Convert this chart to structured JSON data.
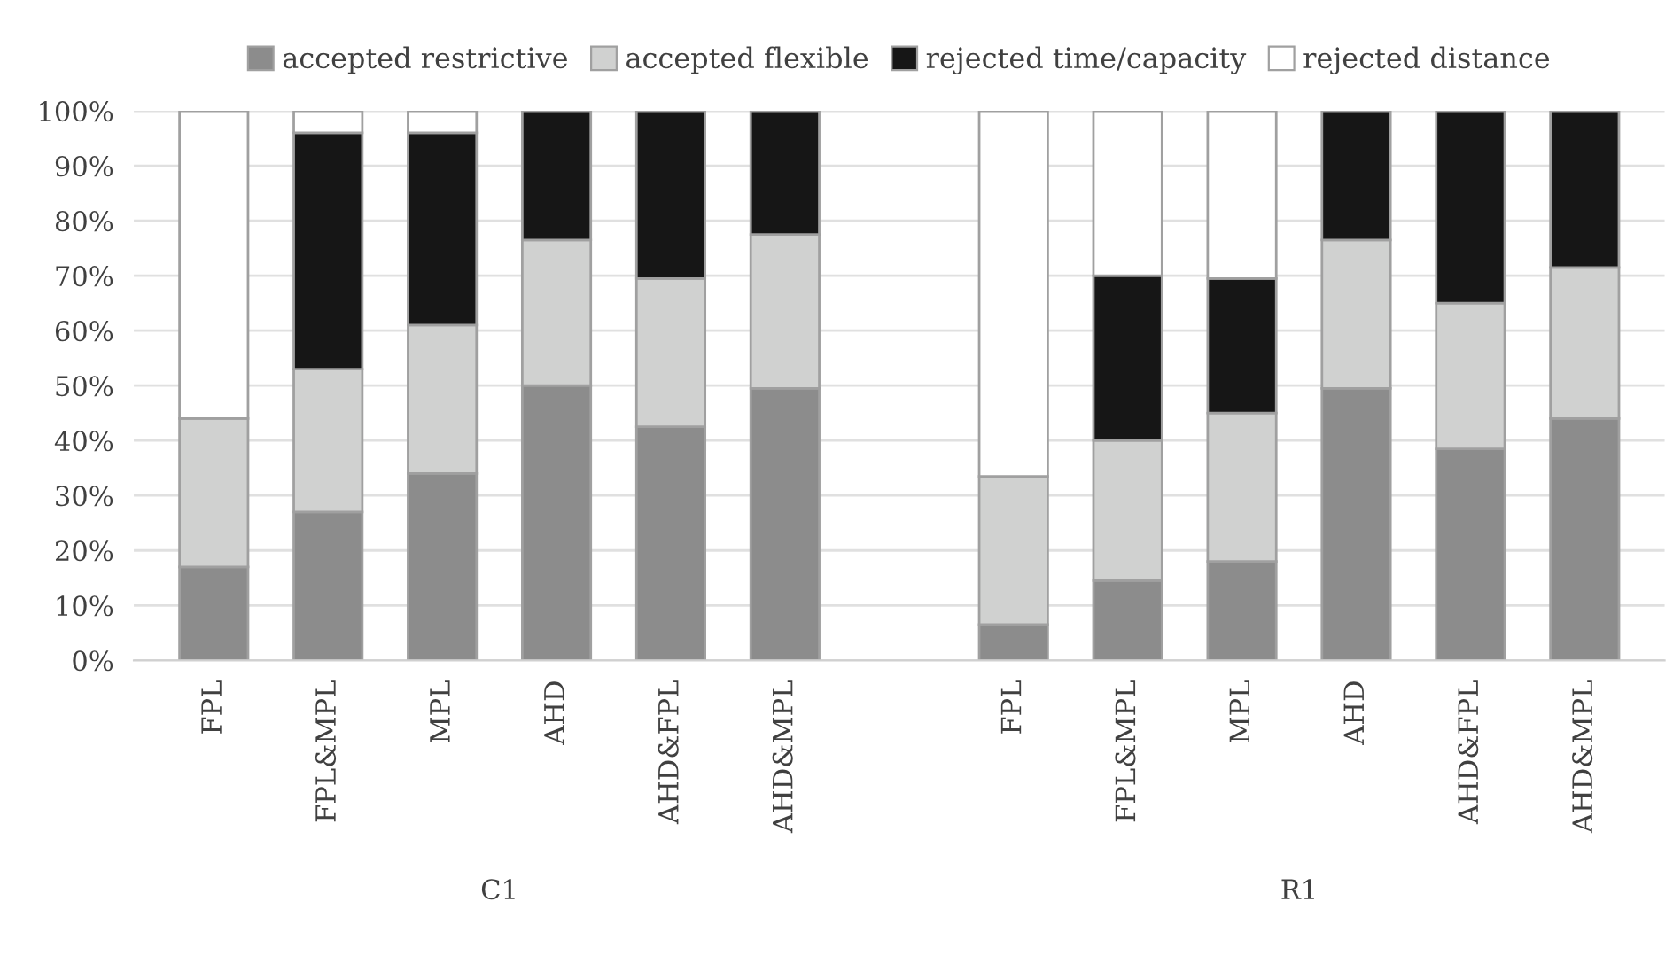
{
  "chart_data": {
    "type": "bar",
    "stacked": true,
    "categories": [
      "FPL",
      "FPL&MPL",
      "MPL",
      "AHD",
      "AHD&FPL",
      "AHD&MPL",
      null,
      "FPL",
      "FPL&MPL",
      "MPL",
      "AHD",
      "AHD&FPL",
      "AHD&MPL"
    ],
    "series": [
      {
        "name": "accepted restrictive",
        "color": "#8c8c8c",
        "values": [
          17,
          27,
          34,
          50,
          42.5,
          49.5,
          null,
          6.5,
          14.5,
          18,
          49.5,
          38.5,
          44
        ]
      },
      {
        "name": "accepted flexible",
        "color": "#d0d1d0",
        "values": [
          27,
          26,
          27,
          26.5,
          27,
          28,
          null,
          27,
          25.5,
          27,
          27,
          26.5,
          27.5
        ]
      },
      {
        "name": "rejected time/capacity",
        "color": "#161616",
        "values": [
          null,
          43,
          35,
          23.5,
          30.5,
          22.5,
          null,
          null,
          30,
          24.5,
          23.5,
          35,
          28.5
        ]
      },
      {
        "name": "rejected distance",
        "color": "#ffffff",
        "values": [
          56,
          4,
          4,
          null,
          null,
          null,
          null,
          66.5,
          30,
          30.5,
          null,
          null,
          null
        ]
      }
    ],
    "ylim": [
      0,
      100
    ],
    "yticks": [
      {
        "value": 0,
        "label": "0%"
      },
      {
        "value": 10,
        "label": "10%"
      },
      {
        "value": 20,
        "label": "20%"
      },
      {
        "value": 30,
        "label": "30%"
      },
      {
        "value": 40,
        "label": "40%"
      },
      {
        "value": 50,
        "label": "50%"
      },
      {
        "value": 60,
        "label": "60%"
      },
      {
        "value": 70,
        "label": "70%"
      },
      {
        "value": 80,
        "label": "80%"
      },
      {
        "value": 90,
        "label": "90%"
      },
      {
        "value": 100,
        "label": "100%"
      }
    ],
    "grid": "y",
    "legend": "top",
    "annotations": [
      "C1",
      "R1"
    ]
  }
}
